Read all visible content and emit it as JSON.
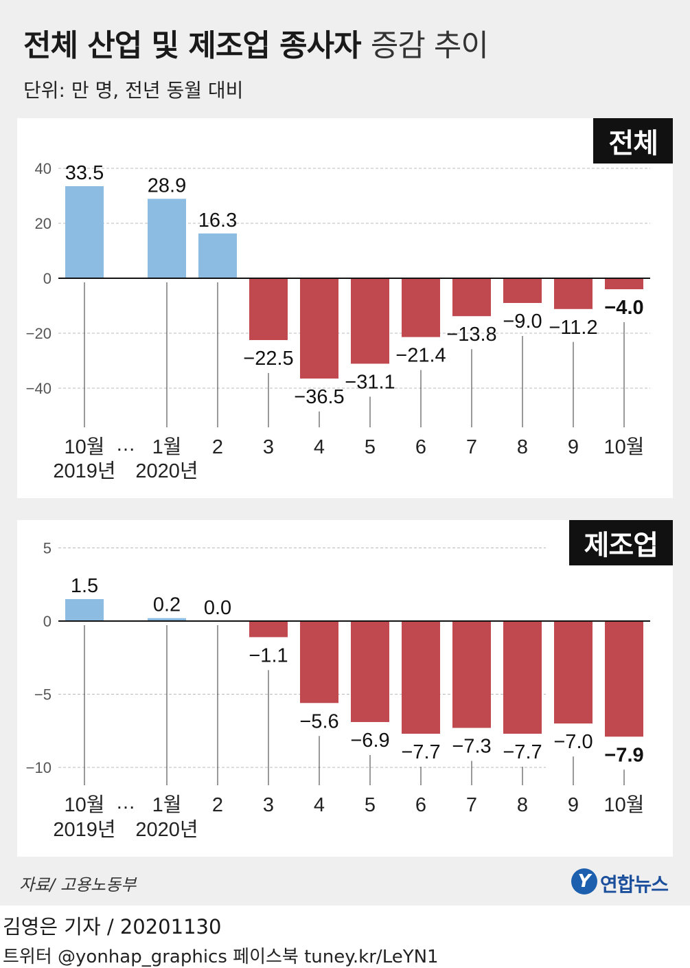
{
  "title": {
    "bold": "전체 산업 및 제조업 종사자",
    "light": "증감 추이"
  },
  "unit": "단위: 만 명, 전년 동월 대비",
  "source": "자료/ 고용노동부",
  "logo": {
    "mark": "Y",
    "text": "연합뉴스"
  },
  "credit": "김영은 기자 / 20201130",
  "social": "트위터 @yonhap_graphics  페이스북 tuney.kr/LeYN1",
  "colors": {
    "positive": "#8cbce2",
    "negative": "#c0494f",
    "grid": "#bbbbbb"
  },
  "chart_data": [
    {
      "type": "bar",
      "title": "전체",
      "categories": [
        "10월 2019년",
        "1월 2020년",
        "2",
        "3",
        "4",
        "5",
        "6",
        "7",
        "8",
        "9",
        "10월"
      ],
      "x_labels": [
        [
          "10월",
          "2019년"
        ],
        [
          "1월",
          "2020년"
        ],
        [
          "2"
        ],
        [
          "3"
        ],
        [
          "4"
        ],
        [
          "5"
        ],
        [
          "6"
        ],
        [
          "7"
        ],
        [
          "8"
        ],
        [
          "9"
        ],
        [
          "10월"
        ]
      ],
      "gap_marker": "…",
      "values": [
        33.5,
        28.9,
        16.3,
        -22.5,
        -36.5,
        -31.1,
        -21.4,
        -13.8,
        -9.0,
        -11.2,
        -4.0
      ],
      "labels": [
        "33.5",
        "28.9",
        "16.3",
        "−22.5",
        "−36.5",
        "−31.1",
        "−21.4",
        "−13.8",
        "−9.0",
        "−11.2",
        "−4.0"
      ],
      "yticks": [
        40,
        20,
        0,
        -20,
        -40
      ],
      "ytick_labels": [
        "40",
        "20",
        "0",
        "−20",
        "−40"
      ],
      "ylim": [
        -60,
        45
      ],
      "grid": true
    },
    {
      "type": "bar",
      "title": "제조업",
      "categories": [
        "10월 2019년",
        "1월 2020년",
        "2",
        "3",
        "4",
        "5",
        "6",
        "7",
        "8",
        "9",
        "10월"
      ],
      "x_labels": [
        [
          "10월",
          "2019년"
        ],
        [
          "1월",
          "2020년"
        ],
        [
          "2"
        ],
        [
          "3"
        ],
        [
          "4"
        ],
        [
          "5"
        ],
        [
          "6"
        ],
        [
          "7"
        ],
        [
          "8"
        ],
        [
          "9"
        ],
        [
          "10월"
        ]
      ],
      "gap_marker": "…",
      "values": [
        1.5,
        0.2,
        0.0,
        -1.1,
        -5.6,
        -6.9,
        -7.7,
        -7.3,
        -7.7,
        -7.0,
        -7.9
      ],
      "labels": [
        "1.5",
        "0.2",
        "0.0",
        "−1.1",
        "−5.6",
        "−6.9",
        "−7.7",
        "−7.3",
        "−7.7",
        "−7.0",
        "−7.9"
      ],
      "yticks": [
        5,
        0,
        -5,
        -10
      ],
      "ytick_labels": [
        "5",
        "0",
        "−5",
        "−10"
      ],
      "ylim": [
        -11,
        5
      ],
      "grid": true
    }
  ]
}
